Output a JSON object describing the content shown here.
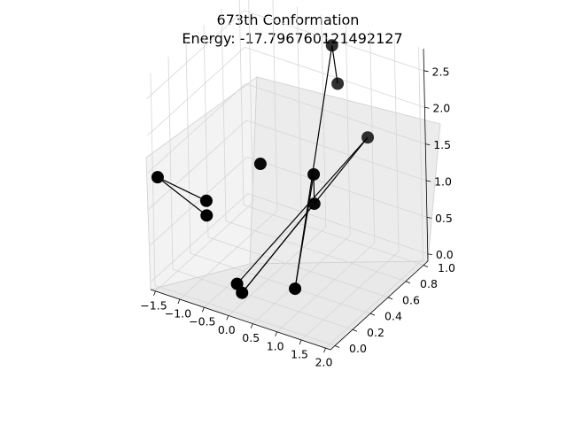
{
  "chart_data": {
    "type": "scatter",
    "title_line1": "673th Conformation",
    "title_line2": "Energy: -17.796760121492127",
    "x_ticks": [
      "−1.5",
      "−1.0",
      "−0.5",
      "0.0",
      "0.5",
      "1.0",
      "1.5",
      "2.0"
    ],
    "y_ticks": [
      "0.0",
      "0.2",
      "0.4",
      "0.6",
      "0.8",
      "1.0"
    ],
    "z_ticks": [
      "0.0",
      "0.5",
      "1.0",
      "1.5",
      "2.0",
      "2.5"
    ],
    "xlim": [
      -1.6,
      2.1
    ],
    "ylim": [
      -0.05,
      1.05
    ],
    "zlim": [
      -0.1,
      2.8
    ],
    "grid": true,
    "marker_color": "#000000",
    "line_color": "#000000",
    "points": [
      {
        "x": -1.5,
        "y": 0.0,
        "z": 1.4
      },
      {
        "x": -0.5,
        "y": 0.0,
        "z": 1.3
      },
      {
        "x": -0.5,
        "y": 0.0,
        "z": 1.1
      },
      {
        "x": 0.3,
        "y": 1.0,
        "z": 2.5
      },
      {
        "x": 0.4,
        "y": 1.0,
        "z": 2.0
      },
      {
        "x": 0.8,
        "y": 0.5,
        "z": 1.0
      },
      {
        "x": 0.8,
        "y": 0.5,
        "z": 1.4
      },
      {
        "x": 1.3,
        "y": 0.0,
        "z": 0.5
      },
      {
        "x": 0.1,
        "y": 0.0,
        "z": 0.3
      },
      {
        "x": 0.2,
        "y": 0.0,
        "z": 0.2
      },
      {
        "x": 1.0,
        "y": 1.0,
        "z": 1.4
      },
      {
        "x": -0.3,
        "y": 0.5,
        "z": 1.3
      }
    ],
    "path": [
      [
        0,
        1
      ],
      [
        0,
        2
      ],
      [
        3,
        4
      ],
      [
        3,
        7
      ],
      [
        5,
        6
      ],
      [
        6,
        7
      ],
      [
        10,
        8
      ],
      [
        10,
        9
      ],
      [
        5,
        9
      ]
    ]
  }
}
